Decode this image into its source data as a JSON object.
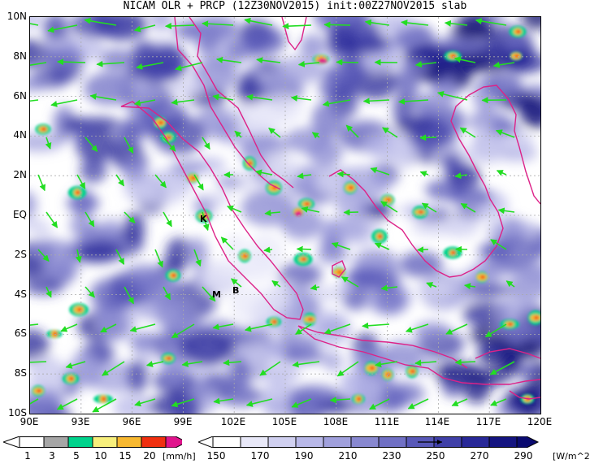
{
  "title": "NICAM OLR + PRCP (12Z30NOV2015) init:00Z27NOV2015 slab",
  "map": {
    "lat_labels": [
      "10N",
      "8N",
      "6N",
      "4N",
      "2N",
      "EQ",
      "2S",
      "4S",
      "6S",
      "8S",
      "10S"
    ],
    "lon_labels": [
      "90E",
      "93E",
      "96E",
      "99E",
      "102E",
      "105E",
      "108E",
      "111E",
      "114E",
      "117E",
      "120E"
    ],
    "place_labels": [
      "K",
      "M",
      "B"
    ],
    "wind_color": "#22dd22",
    "coast_color": "#dd2288"
  },
  "prcp_colorbar": {
    "labels": [
      "1",
      "3",
      "5",
      "10",
      "15",
      "20"
    ],
    "unit": "[mm/h]",
    "colors": [
      "#ffffff",
      "#a6a6a6",
      "#00d38c",
      "#f7ef7c",
      "#f7b830",
      "#f03010",
      "#e0148c"
    ]
  },
  "olr_colorbar": {
    "labels": [
      "150",
      "170",
      "190",
      "210",
      "230",
      "250",
      "270",
      "290"
    ],
    "unit": "[W/m^2]",
    "colors": [
      "#ffffff",
      "#e8e8f8",
      "#d0d0f0",
      "#b8b8e8",
      "#a0a0dc",
      "#8888d0",
      "#7070c4",
      "#5858b8",
      "#4040a8",
      "#282898",
      "#141480",
      "#0a0a70"
    ]
  }
}
